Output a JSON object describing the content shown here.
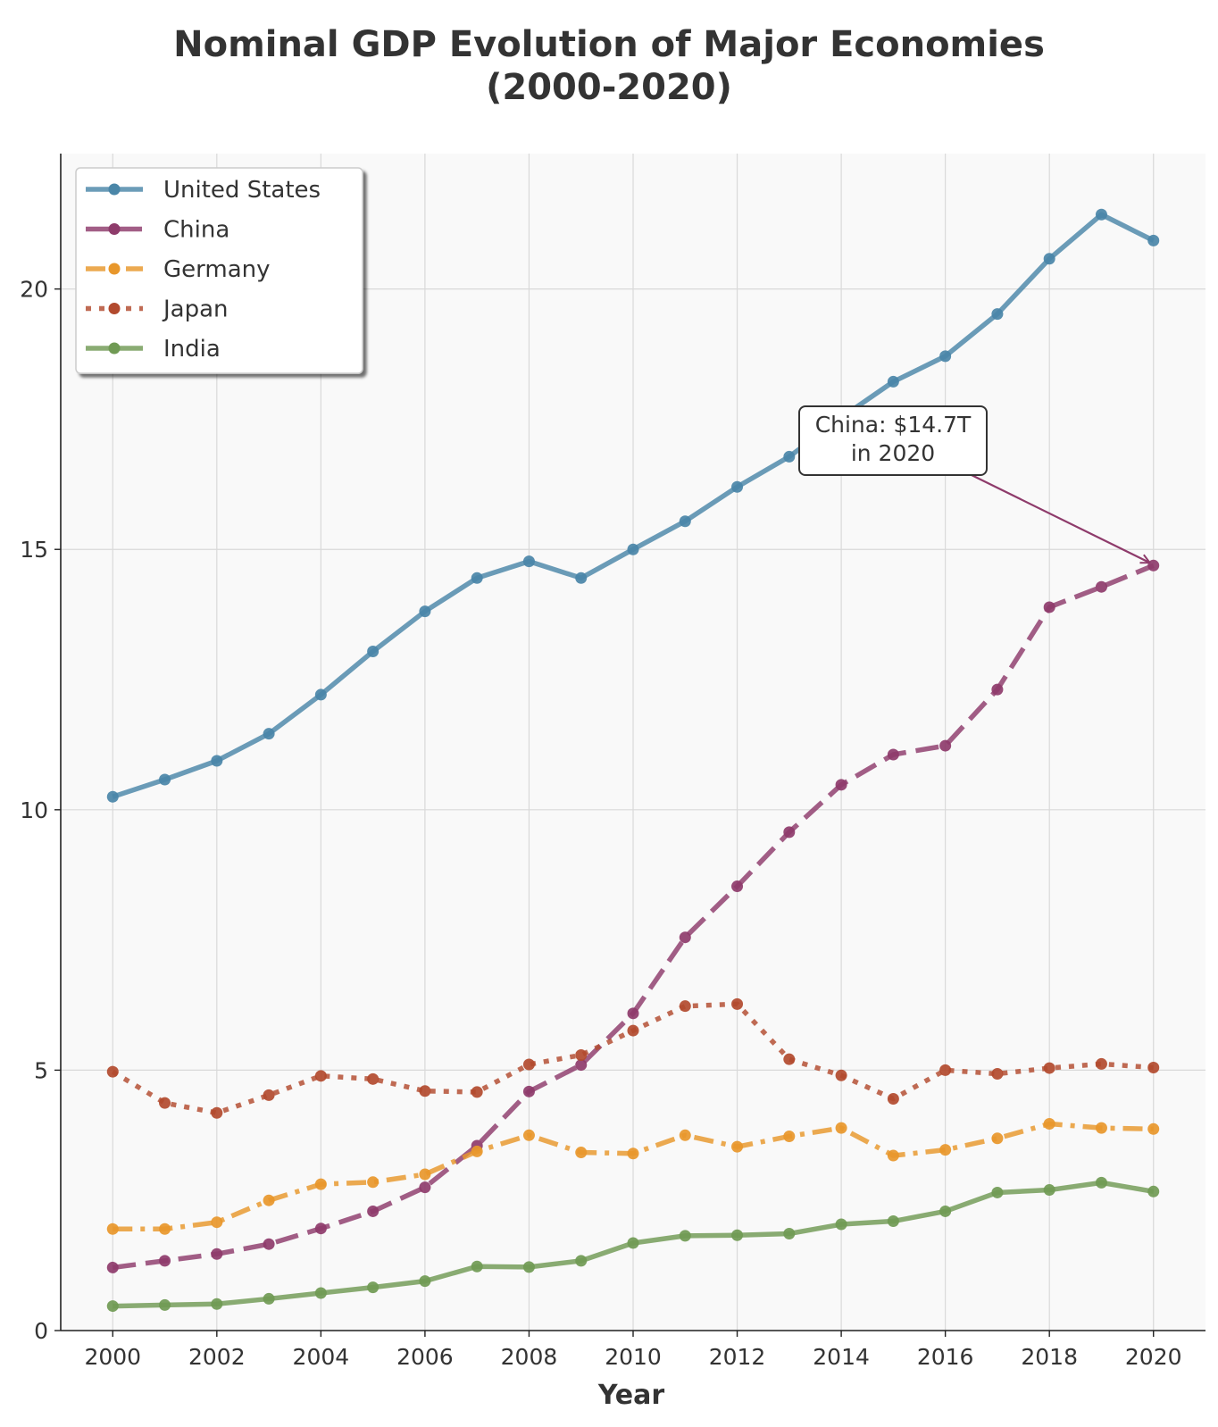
{
  "chart_data": {
    "type": "line",
    "title_lines": [
      "Nominal GDP Evolution of Major Economies",
      "(2000-2020)"
    ],
    "xlabel": "Year",
    "ylabel": "",
    "x": [
      2000,
      2001,
      2002,
      2003,
      2004,
      2005,
      2006,
      2007,
      2008,
      2009,
      2010,
      2011,
      2012,
      2013,
      2014,
      2015,
      2016,
      2017,
      2018,
      2019,
      2020
    ],
    "xticks": [
      2000,
      2002,
      2004,
      2006,
      2008,
      2010,
      2012,
      2014,
      2016,
      2018,
      2020
    ],
    "yticks": [
      0,
      5,
      10,
      15,
      20
    ],
    "xlim": [
      1999,
      2021
    ],
    "ylim": [
      0,
      22.6
    ],
    "grid": true,
    "legend_position": "upper-left",
    "series": [
      {
        "name": "United States",
        "color": "#4a86a8",
        "dash": "solid",
        "values": [
          10.25,
          10.58,
          10.94,
          11.46,
          12.21,
          13.04,
          13.81,
          14.45,
          14.77,
          14.45,
          15.0,
          15.54,
          16.2,
          16.78,
          17.53,
          18.22,
          18.71,
          19.52,
          20.58,
          21.43,
          20.93
        ]
      },
      {
        "name": "China",
        "color": "#8e3b6b",
        "dash": "dashed",
        "values": [
          1.21,
          1.34,
          1.47,
          1.66,
          1.96,
          2.29,
          2.75,
          3.55,
          4.59,
          5.1,
          6.09,
          7.55,
          8.53,
          9.57,
          10.48,
          11.06,
          11.23,
          12.31,
          13.89,
          14.28,
          14.69
        ]
      },
      {
        "name": "Germany",
        "color": "#e8972b",
        "dash": "dashdot",
        "values": [
          1.95,
          1.95,
          2.08,
          2.5,
          2.81,
          2.85,
          3.0,
          3.44,
          3.75,
          3.42,
          3.4,
          3.75,
          3.53,
          3.73,
          3.89,
          3.36,
          3.47,
          3.69,
          3.97,
          3.89,
          3.87
        ]
      },
      {
        "name": "Japan",
        "color": "#b24a2e",
        "dash": "dotted",
        "values": [
          4.97,
          4.37,
          4.18,
          4.52,
          4.89,
          4.83,
          4.6,
          4.58,
          5.11,
          5.29,
          5.76,
          6.23,
          6.27,
          5.21,
          4.9,
          4.45,
          5.0,
          4.93,
          5.04,
          5.12,
          5.05
        ]
      },
      {
        "name": "India",
        "color": "#709a54",
        "dash": "solid",
        "values": [
          0.47,
          0.49,
          0.51,
          0.61,
          0.72,
          0.83,
          0.95,
          1.23,
          1.22,
          1.34,
          1.68,
          1.82,
          1.83,
          1.86,
          2.04,
          2.1,
          2.29,
          2.65,
          2.7,
          2.84,
          2.67
        ]
      }
    ],
    "annotation": {
      "lines": [
        "China: $14.7T",
        "in 2020"
      ],
      "series": "China",
      "x": 2020,
      "y": 14.7
    }
  }
}
